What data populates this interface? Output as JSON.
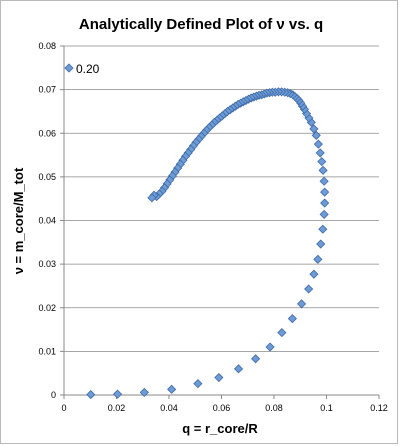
{
  "chart_data": {
    "type": "scatter",
    "title": "Analytically Defined Plot of  ν vs. q",
    "xlabel": "q = r_core/R",
    "ylabel": "ν = m_core/M_tot",
    "xlim": [
      0,
      0.12
    ],
    "ylim": [
      0,
      0.08
    ],
    "x_ticks": [
      "0",
      "0.02",
      "0.04",
      "0.06",
      "0.08",
      "0.1",
      "0.12"
    ],
    "y_ticks": [
      "0",
      "0.01",
      "0.02",
      "0.03",
      "0.04",
      "0.05",
      "0.06",
      "0.07",
      "0.08"
    ],
    "grid": "horizontal",
    "legend_position": "top-left",
    "marker": "diamond",
    "marker_color": "#6c9bd6",
    "marker_edge_color": "#3f6aa6",
    "series": [
      {
        "name": "0.20",
        "x": [
          0.0102,
          0.0204,
          0.0306,
          0.041,
          0.051,
          0.059,
          0.0665,
          0.073,
          0.0785,
          0.083,
          0.087,
          0.0905,
          0.0932,
          0.0952,
          0.0967,
          0.0978,
          0.0986,
          0.0991,
          0.0993,
          0.0993,
          0.0991,
          0.0987,
          0.0982,
          0.0976,
          0.0969,
          0.0961,
          0.0952,
          0.0942,
          0.0933,
          0.0924,
          0.0916,
          0.0909,
          0.0902,
          0.0895,
          0.0888,
          0.088,
          0.0872,
          0.0862,
          0.0852,
          0.0841,
          0.0829,
          0.0817,
          0.0805,
          0.0794,
          0.0783,
          0.0773,
          0.0763,
          0.0753,
          0.0743,
          0.0733,
          0.0723,
          0.0713,
          0.0703,
          0.0693,
          0.0683,
          0.0673,
          0.0663,
          0.0653,
          0.0643,
          0.0633,
          0.0623,
          0.0613,
          0.0603,
          0.0593,
          0.0583,
          0.0573,
          0.0563,
          0.0553,
          0.0543,
          0.0533,
          0.0523,
          0.0513,
          0.0503,
          0.0493,
          0.0483,
          0.0473,
          0.0463,
          0.0453,
          0.0443,
          0.0433,
          0.0423,
          0.0413,
          0.0403,
          0.0393,
          0.0383,
          0.0373,
          0.0363,
          0.0353,
          0.0343,
          0.0335
        ],
        "y": [
          0.0001,
          0.0002,
          0.0006,
          0.0013,
          0.0026,
          0.004,
          0.006,
          0.0083,
          0.011,
          0.0143,
          0.0175,
          0.0209,
          0.0243,
          0.0277,
          0.0311,
          0.0346,
          0.038,
          0.0414,
          0.044,
          0.0465,
          0.049,
          0.0515,
          0.0535,
          0.0555,
          0.0575,
          0.0595,
          0.061,
          0.0625,
          0.0635,
          0.0645,
          0.0655,
          0.0662,
          0.0669,
          0.0675,
          0.068,
          0.0684,
          0.0688,
          0.0691,
          0.0693,
          0.0694,
          0.0695,
          0.0695,
          0.0694,
          0.0694,
          0.0693,
          0.0692,
          0.069,
          0.0688,
          0.0687,
          0.0685,
          0.0683,
          0.0681,
          0.0678,
          0.0675,
          0.0672,
          0.0669,
          0.0666,
          0.0662,
          0.0658,
          0.0654,
          0.065,
          0.0645,
          0.064,
          0.0635,
          0.063,
          0.0625,
          0.0619,
          0.0613,
          0.0607,
          0.06,
          0.0593,
          0.0586,
          0.0579,
          0.0571,
          0.0563,
          0.0555,
          0.0547,
          0.0538,
          0.0529,
          0.052,
          0.0511,
          0.0502,
          0.0493,
          0.0484,
          0.0475,
          0.0467,
          0.0461,
          0.0455,
          0.0458,
          0.0452
        ]
      }
    ]
  }
}
